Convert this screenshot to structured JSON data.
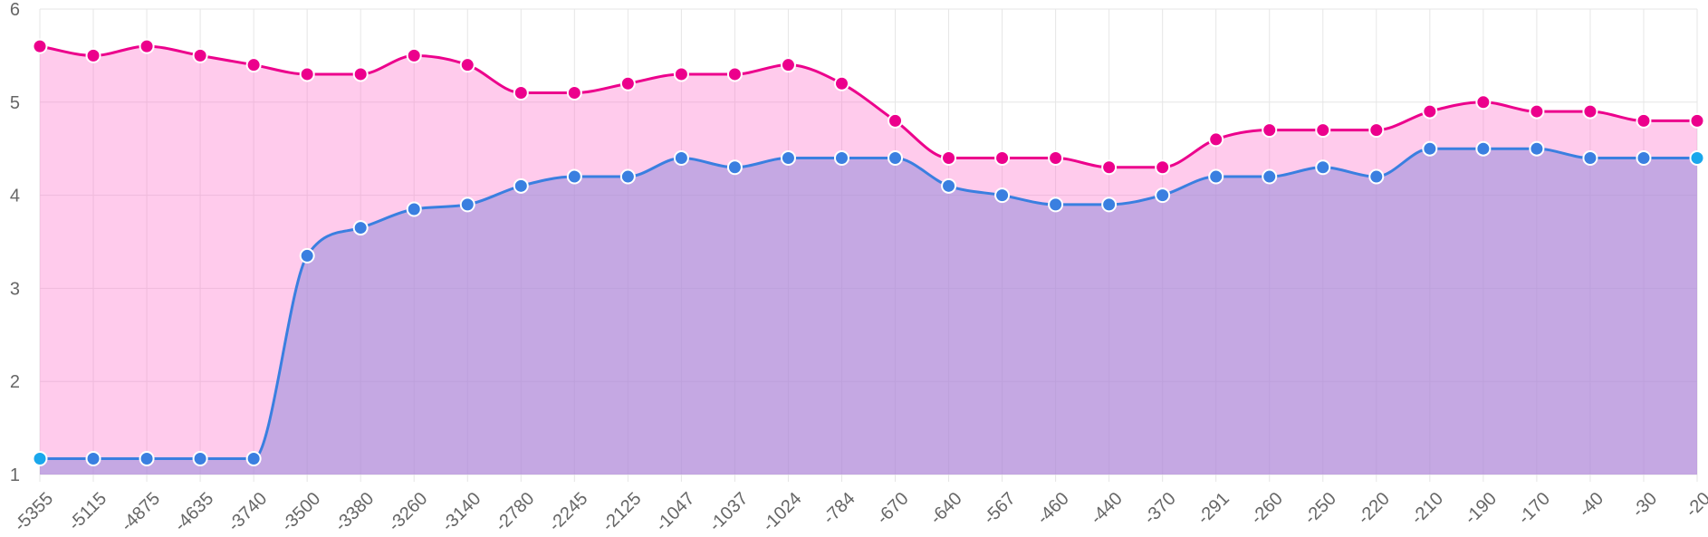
{
  "chart_data": {
    "type": "area",
    "categories": [
      "-5355",
      "-5115",
      "-4875",
      "-4635",
      "-3740",
      "-3500",
      "-3380",
      "-3260",
      "-3140",
      "-2780",
      "-2245",
      "-2125",
      "-1047",
      "-1037",
      "-1024",
      "-784",
      "-670",
      "-640",
      "-567",
      "-460",
      "-440",
      "-370",
      "-291",
      "-260",
      "-250",
      "-220",
      "-210",
      "-190",
      "-170",
      "-40",
      "-30",
      "-20"
    ],
    "series": [
      {
        "color": "#ec008c",
        "fill": "rgba(255,105,200,0.35)",
        "values": [
          5.6,
          5.5,
          5.6,
          5.5,
          5.4,
          5.3,
          5.3,
          5.5,
          5.4,
          5.1,
          5.1,
          5.2,
          5.3,
          5.3,
          5.4,
          5.2,
          4.8,
          4.4,
          4.4,
          4.4,
          4.3,
          4.3,
          4.6,
          4.7,
          4.7,
          4.7,
          4.9,
          5.0,
          4.9,
          4.9,
          4.8,
          4.8
        ]
      },
      {
        "color": "#3a7fe0",
        "fill": "rgba(150,140,220,0.55)",
        "end_marker_color": "#1aa7ec",
        "values": [
          1.17,
          1.17,
          1.17,
          1.17,
          1.17,
          3.35,
          3.65,
          3.85,
          3.9,
          4.1,
          4.2,
          4.2,
          4.4,
          4.3,
          4.4,
          4.4,
          4.4,
          4.1,
          4.0,
          3.9,
          3.9,
          4.0,
          4.2,
          4.2,
          4.3,
          4.2,
          4.5,
          4.5,
          4.5,
          4.4,
          4.4,
          4.4
        ]
      }
    ],
    "y_ticks": [
      1,
      2,
      3,
      4,
      5,
      6
    ],
    "ylim": [
      1,
      6
    ],
    "grid": true,
    "legend": "none",
    "title": "",
    "xlabel": "",
    "ylabel": ""
  }
}
